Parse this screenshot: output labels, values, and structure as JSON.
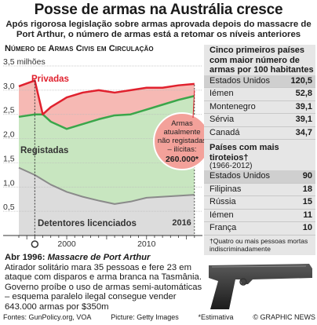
{
  "header": {
    "title": "Posse de armas na Austrália cresce",
    "subtitle": "Após rigorosa legislação sobre armas aprovada depois do massacre de Port Arthur, o número de armas está a retomar os níveis anteriores"
  },
  "chart_title": "Número de Armas Civis em Circulação",
  "chart_data": {
    "type": "area",
    "title": "Número de Armas Civis em Circulação",
    "ylabel": "3,5 milhões",
    "ylim": [
      0,
      3.5
    ],
    "xlim": [
      1994,
      2017
    ],
    "x_ticks": [
      2000,
      2010
    ],
    "y_ticks": [
      "3,5 milhões",
      "3,0",
      "2,5",
      "2,0",
      "1,5",
      "1,0",
      "0,5"
    ],
    "y_tick_values": [
      3.5,
      3.0,
      2.5,
      2.0,
      1.5,
      1.0,
      0.5
    ],
    "grid": true,
    "series": [
      {
        "name": "Privadas",
        "color": "#e0212e",
        "x": [
          1994,
          1996,
          1997,
          1998,
          2000,
          2002,
          2004,
          2006,
          2008,
          2010,
          2012,
          2014,
          2016
        ],
        "values": [
          3.08,
          3.2,
          2.5,
          2.65,
          2.85,
          2.95,
          3.0,
          2.95,
          3.0,
          3.05,
          3.05,
          3.1,
          3.13
        ]
      },
      {
        "name": "Registadas",
        "color": "#3aa64a",
        "x": [
          1994,
          1996,
          1997,
          1998,
          2000,
          2002,
          2004,
          2006,
          2008,
          2010,
          2012,
          2014,
          2016
        ],
        "values": [
          2.45,
          2.5,
          2.5,
          2.35,
          2.2,
          2.3,
          2.4,
          2.48,
          2.5,
          2.6,
          2.7,
          2.8,
          2.88
        ]
      },
      {
        "name": "Detentores licenciados",
        "color": "#8a8a8a",
        "x": [
          1994,
          1996,
          1998,
          2000,
          2002,
          2004,
          2006,
          2008,
          2010,
          2012,
          2014,
          2016
        ],
        "values": [
          1.4,
          1.25,
          1.05,
          0.9,
          0.8,
          0.72,
          0.65,
          0.7,
          0.78,
          0.8,
          0.82,
          0.84
        ]
      }
    ],
    "annotations": {
      "unregistered": "Armas atualmente não registadas – ilícitas: 260.000*",
      "year_marker": "2016"
    }
  },
  "panel": {
    "ranking_title": "Cinco primeiros países com maior número de armas por 100 habitantes",
    "ranking": [
      {
        "country": "Estados Unidos",
        "value": "120,5"
      },
      {
        "country": "Iémen",
        "value": "52,8"
      },
      {
        "country": "Montenegro",
        "value": "39,1"
      },
      {
        "country": "Sérvia",
        "value": "39,1"
      },
      {
        "country": "Canadá",
        "value": "34,7"
      }
    ],
    "shootings_title": "Países com mais tiroteios†",
    "shootings_period": "(1966-2012)",
    "shootings": [
      {
        "country": "Estados Unidos",
        "value": "90"
      },
      {
        "country": "Filipinas",
        "value": "18"
      },
      {
        "country": "Rússia",
        "value": "15"
      },
      {
        "country": "Iémen",
        "value": "11"
      },
      {
        "country": "França",
        "value": "10"
      }
    ],
    "footnote": "†Quatro ou mais pessoas mortas indiscriminadamente"
  },
  "event": {
    "date": "Abr 1996:",
    "name": "Massacre de Port Arthur",
    "text": "Atirador solitário mara 35 pessoas e fere 23 em ataque com disparos e arma branca na Tasmânia. Governo proíbe o uso de armas semi-automáticas – esquema paralelo ilegal consegue vender 643.000 armas por $350m"
  },
  "footer": {
    "sources": "Fontes: GunPolicy.org, VOA",
    "picture": "Picture: Getty Images",
    "estimate": "*Estimativa",
    "credit": "© GRAPHIC NEWS"
  },
  "colors": {
    "private": "#e0212e",
    "registered": "#3aa64a",
    "holders": "#8a8a8a",
    "green_fill": "#c8e6c0",
    "red_fill": "#f6b9b4",
    "panel_bg": "#e6e6e6"
  }
}
